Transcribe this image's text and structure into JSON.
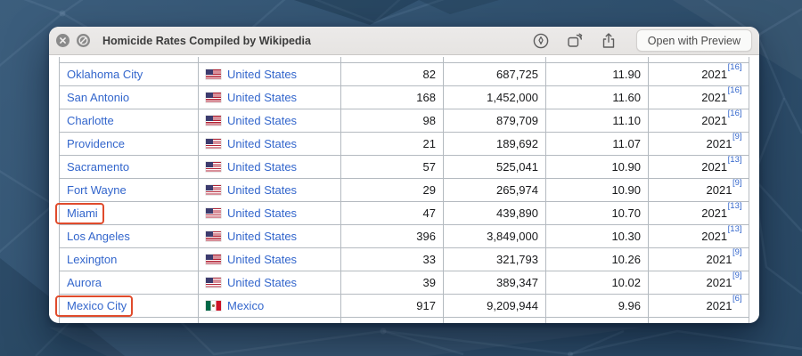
{
  "window": {
    "title": "Homicide Rates Compiled by Wikipedia",
    "open_button": "Open with Preview"
  },
  "accent_colors": {
    "link_blue": "#3366cc",
    "highlight_orange": "#e04b2c",
    "desktop_blue": "#315270",
    "titlebar_gray": "#e9e7e5"
  },
  "table": {
    "rows": [
      {
        "city": "Oklahoma City",
        "country": "United States",
        "flag": "us-flag-icon",
        "homicides": "82",
        "population": "687,725",
        "rate": "11.90",
        "year": "2021",
        "ref": "[16]",
        "highlighted": false
      },
      {
        "city": "San Antonio",
        "country": "United States",
        "flag": "us-flag-icon",
        "homicides": "168",
        "population": "1,452,000",
        "rate": "11.60",
        "year": "2021",
        "ref": "[16]",
        "highlighted": false
      },
      {
        "city": "Charlotte",
        "country": "United States",
        "flag": "us-flag-icon",
        "homicides": "98",
        "population": "879,709",
        "rate": "11.10",
        "year": "2021",
        "ref": "[16]",
        "highlighted": false
      },
      {
        "city": "Providence",
        "country": "United States",
        "flag": "us-flag-icon",
        "homicides": "21",
        "population": "189,692",
        "rate": "11.07",
        "year": "2021",
        "ref": "[9]",
        "highlighted": false
      },
      {
        "city": "Sacramento",
        "country": "United States",
        "flag": "us-flag-icon",
        "homicides": "57",
        "population": "525,041",
        "rate": "10.90",
        "year": "2021",
        "ref": "[13]",
        "highlighted": false
      },
      {
        "city": "Fort Wayne",
        "country": "United States",
        "flag": "us-flag-icon",
        "homicides": "29",
        "population": "265,974",
        "rate": "10.90",
        "year": "2021",
        "ref": "[9]",
        "highlighted": false
      },
      {
        "city": "Miami",
        "country": "United States",
        "flag": "us-flag-icon",
        "homicides": "47",
        "population": "439,890",
        "rate": "10.70",
        "year": "2021",
        "ref": "[13]",
        "highlighted": true
      },
      {
        "city": "Los Angeles",
        "country": "United States",
        "flag": "us-flag-icon",
        "homicides": "396",
        "population": "3,849,000",
        "rate": "10.30",
        "year": "2021",
        "ref": "[13]",
        "highlighted": false
      },
      {
        "city": "Lexington",
        "country": "United States",
        "flag": "us-flag-icon",
        "homicides": "33",
        "population": "321,793",
        "rate": "10.26",
        "year": "2021",
        "ref": "[9]",
        "highlighted": false
      },
      {
        "city": "Aurora",
        "country": "United States",
        "flag": "us-flag-icon",
        "homicides": "39",
        "population": "389,347",
        "rate": "10.02",
        "year": "2021",
        "ref": "[9]",
        "highlighted": false
      },
      {
        "city": "Mexico City",
        "country": "Mexico",
        "flag": "mexico-flag-icon",
        "homicides": "917",
        "population": "9,209,944",
        "rate": "9.96",
        "year": "2021",
        "ref": "[6]",
        "highlighted": true
      }
    ]
  }
}
